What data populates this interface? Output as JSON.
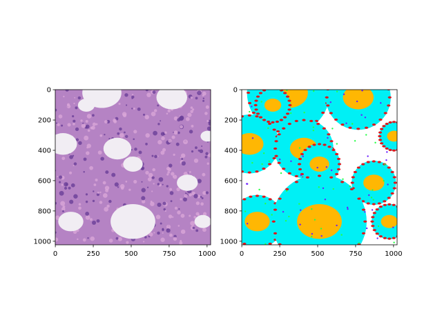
{
  "chart_data": [
    {
      "type": "image",
      "xlim": [
        -0.5,
        1023.5
      ],
      "ylim": [
        1023.5,
        -0.5
      ],
      "xticks": [
        0,
        250,
        500,
        750,
        1000
      ],
      "yticks": [
        0,
        200,
        400,
        600,
        800,
        1000
      ]
    },
    {
      "type": "image",
      "xlim": [
        -0.5,
        1023.5
      ],
      "ylim": [
        1023.5,
        -0.5
      ],
      "xticks": [
        0,
        250,
        500,
        750,
        1000
      ],
      "yticks": [
        0,
        200,
        400,
        600,
        800,
        1000
      ]
    }
  ]
}
